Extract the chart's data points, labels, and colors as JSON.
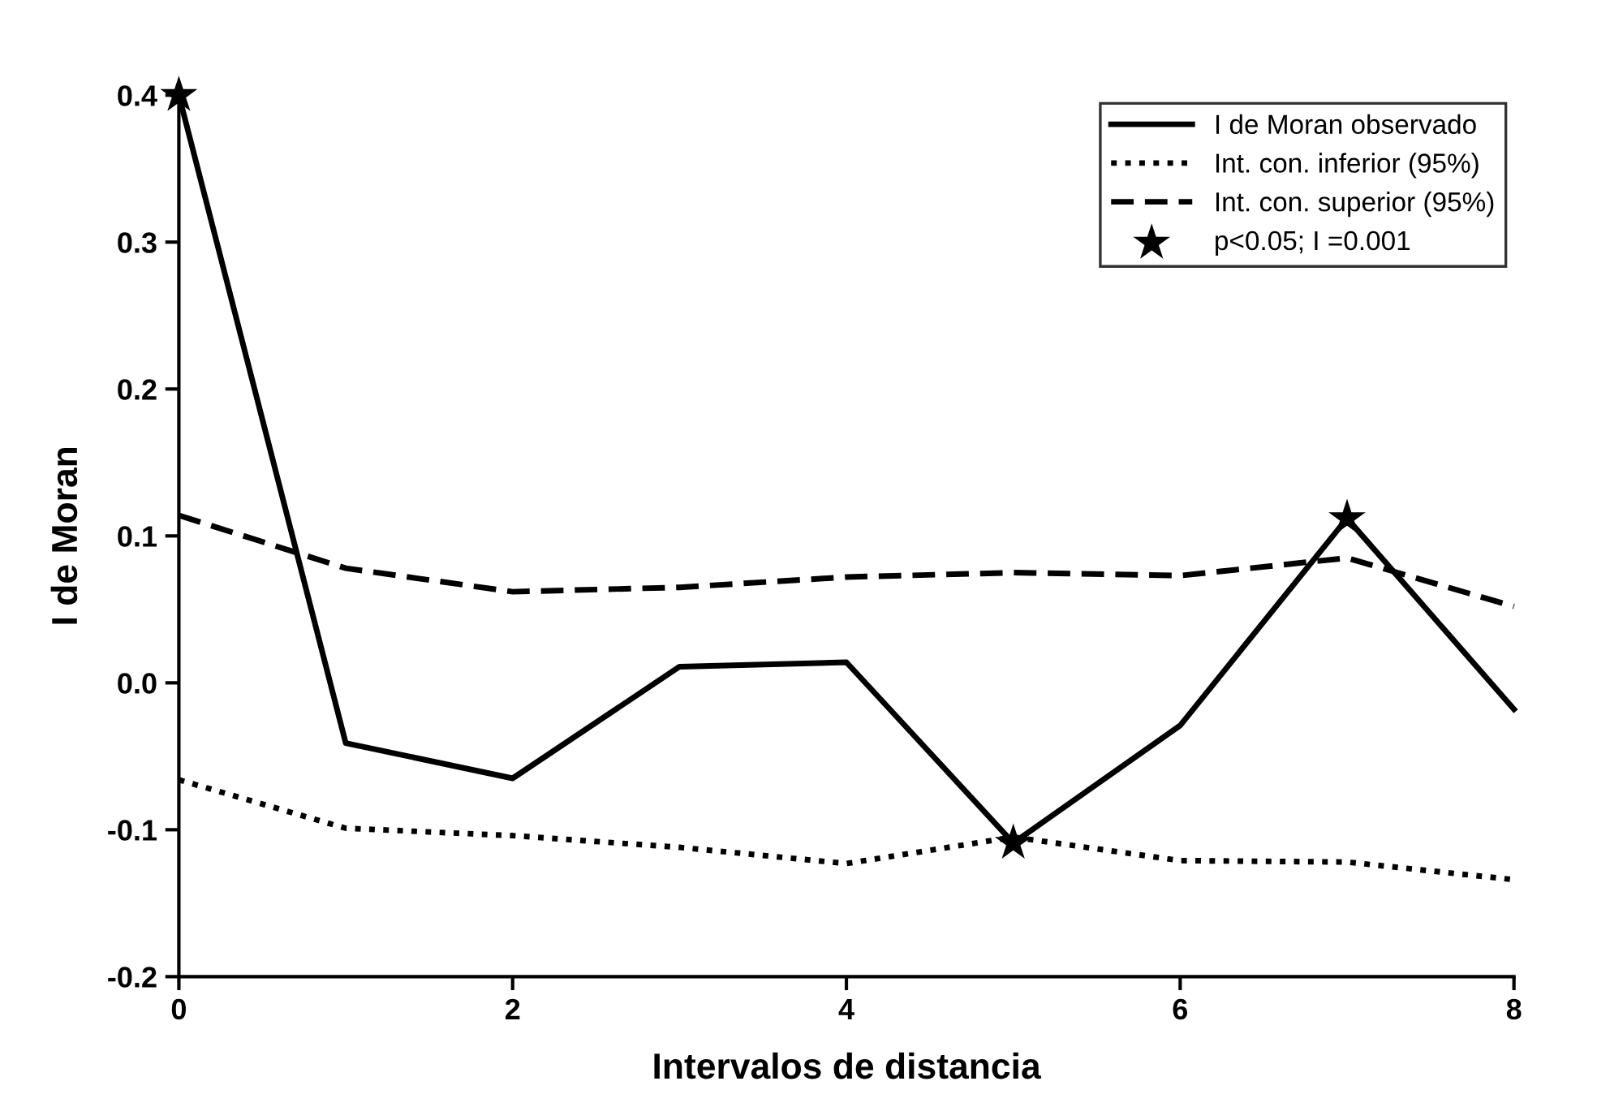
{
  "chart_data": {
    "type": "line",
    "xlabel": "Intervalos de distancia",
    "ylabel": "I de Moran",
    "x": [
      0,
      1,
      2,
      3,
      4,
      5,
      6,
      7,
      8
    ],
    "series": [
      {
        "name": "I de Moran observado",
        "color": "#000000",
        "line_style": "solid",
        "values": [
          0.4,
          -0.041,
          -0.065,
          0.011,
          0.014,
          -0.109,
          -0.029,
          0.112,
          -0.018
        ]
      },
      {
        "name": "Int. con. inferior (95%)",
        "color": "#000000",
        "line_style": "dotted",
        "values": [
          -0.066,
          -0.099,
          -0.104,
          -0.112,
          -0.123,
          -0.105,
          -0.121,
          -0.122,
          -0.134
        ]
      },
      {
        "name": "Int. con. superior (95%)",
        "color": "#000000",
        "line_style": "dashed",
        "values": [
          0.114,
          0.078,
          0.062,
          0.065,
          0.072,
          0.075,
          0.073,
          0.085,
          0.052
        ]
      },
      {
        "name": "p<0.05; I =0.001",
        "type": "scatter",
        "marker": "star",
        "color": "#000000",
        "x": [
          0,
          5,
          7
        ],
        "values": [
          0.4,
          -0.109,
          0.112
        ]
      }
    ],
    "xlim": [
      0,
      8
    ],
    "ylim": [
      -0.2,
      0.4
    ],
    "xticks": [
      0,
      2,
      4,
      6,
      8
    ],
    "yticks": [
      {
        "value": -0.2,
        "label": "-0.2"
      },
      {
        "value": -0.1,
        "label": "-0.1"
      },
      {
        "value": 0.0,
        "label": "0.0"
      },
      {
        "value": 0.1,
        "label": "0.1"
      },
      {
        "value": 0.2,
        "label": "0.2"
      },
      {
        "value": 0.3,
        "label": "0.3"
      },
      {
        "value": 0.4,
        "label": "0.4"
      }
    ],
    "grid": false,
    "legend": "top right"
  }
}
